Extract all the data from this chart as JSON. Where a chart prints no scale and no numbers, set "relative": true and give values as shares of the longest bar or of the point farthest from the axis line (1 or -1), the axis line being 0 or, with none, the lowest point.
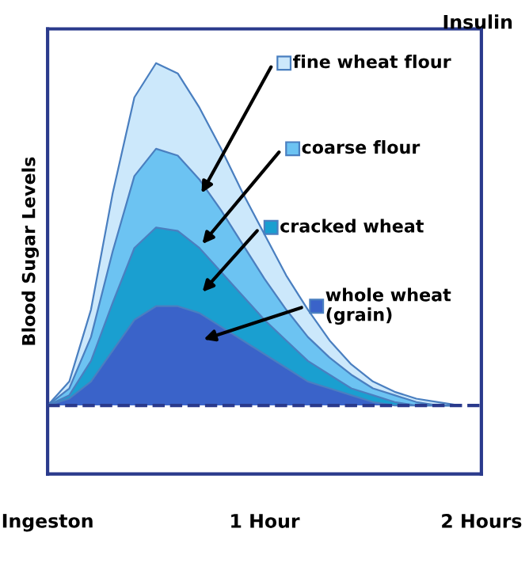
{
  "chart_data": {
    "type": "area",
    "title": "Insulin",
    "ylabel": "Blood Sugar Levels",
    "relative": true,
    "x": [
      0,
      0.1,
      0.2,
      0.3,
      0.4,
      0.5,
      0.6,
      0.7,
      0.8,
      0.9,
      1.0,
      1.1,
      1.2,
      1.3,
      1.4,
      1.5,
      1.6,
      1.7,
      1.8,
      1.9
    ],
    "xlim": [
      0,
      2
    ],
    "xticks": [
      {
        "value": 0,
        "label": "Ingeston"
      },
      {
        "value": 1,
        "label": "1 Hour"
      },
      {
        "value": 2,
        "label": "2 Hours"
      }
    ],
    "series": [
      {
        "name": "fine wheat flour",
        "color": "#cce8fb",
        "values": [
          0,
          0.07,
          0.28,
          0.62,
          0.9,
          1.0,
          0.97,
          0.87,
          0.75,
          0.62,
          0.5,
          0.38,
          0.28,
          0.19,
          0.12,
          0.07,
          0.04,
          0.02,
          0.01,
          0
        ]
      },
      {
        "name": "coarse flour",
        "color": "#6cc3f2",
        "values": [
          0,
          0.05,
          0.2,
          0.45,
          0.67,
          0.75,
          0.73,
          0.66,
          0.57,
          0.47,
          0.37,
          0.28,
          0.2,
          0.14,
          0.09,
          0.05,
          0.03,
          0.01,
          0,
          0
        ]
      },
      {
        "name": "cracked wheat",
        "color": "#1a9fd0",
        "values": [
          0,
          0.03,
          0.13,
          0.3,
          0.46,
          0.52,
          0.51,
          0.46,
          0.39,
          0.32,
          0.25,
          0.19,
          0.13,
          0.09,
          0.05,
          0.03,
          0.01,
          0,
          0,
          0
        ]
      },
      {
        "name": "whole wheat\n(grain)",
        "color": "#3a63c9",
        "values": [
          0,
          0.02,
          0.07,
          0.16,
          0.25,
          0.29,
          0.29,
          0.27,
          0.23,
          0.19,
          0.15,
          0.11,
          0.07,
          0.05,
          0.03,
          0.01,
          0,
          0,
          0,
          0
        ]
      }
    ],
    "ref_lines": [
      {
        "axis": "y",
        "value": 0,
        "color": "#2a3a8c",
        "line_style": "dashed"
      }
    ],
    "grid": false,
    "legend": "top right"
  }
}
